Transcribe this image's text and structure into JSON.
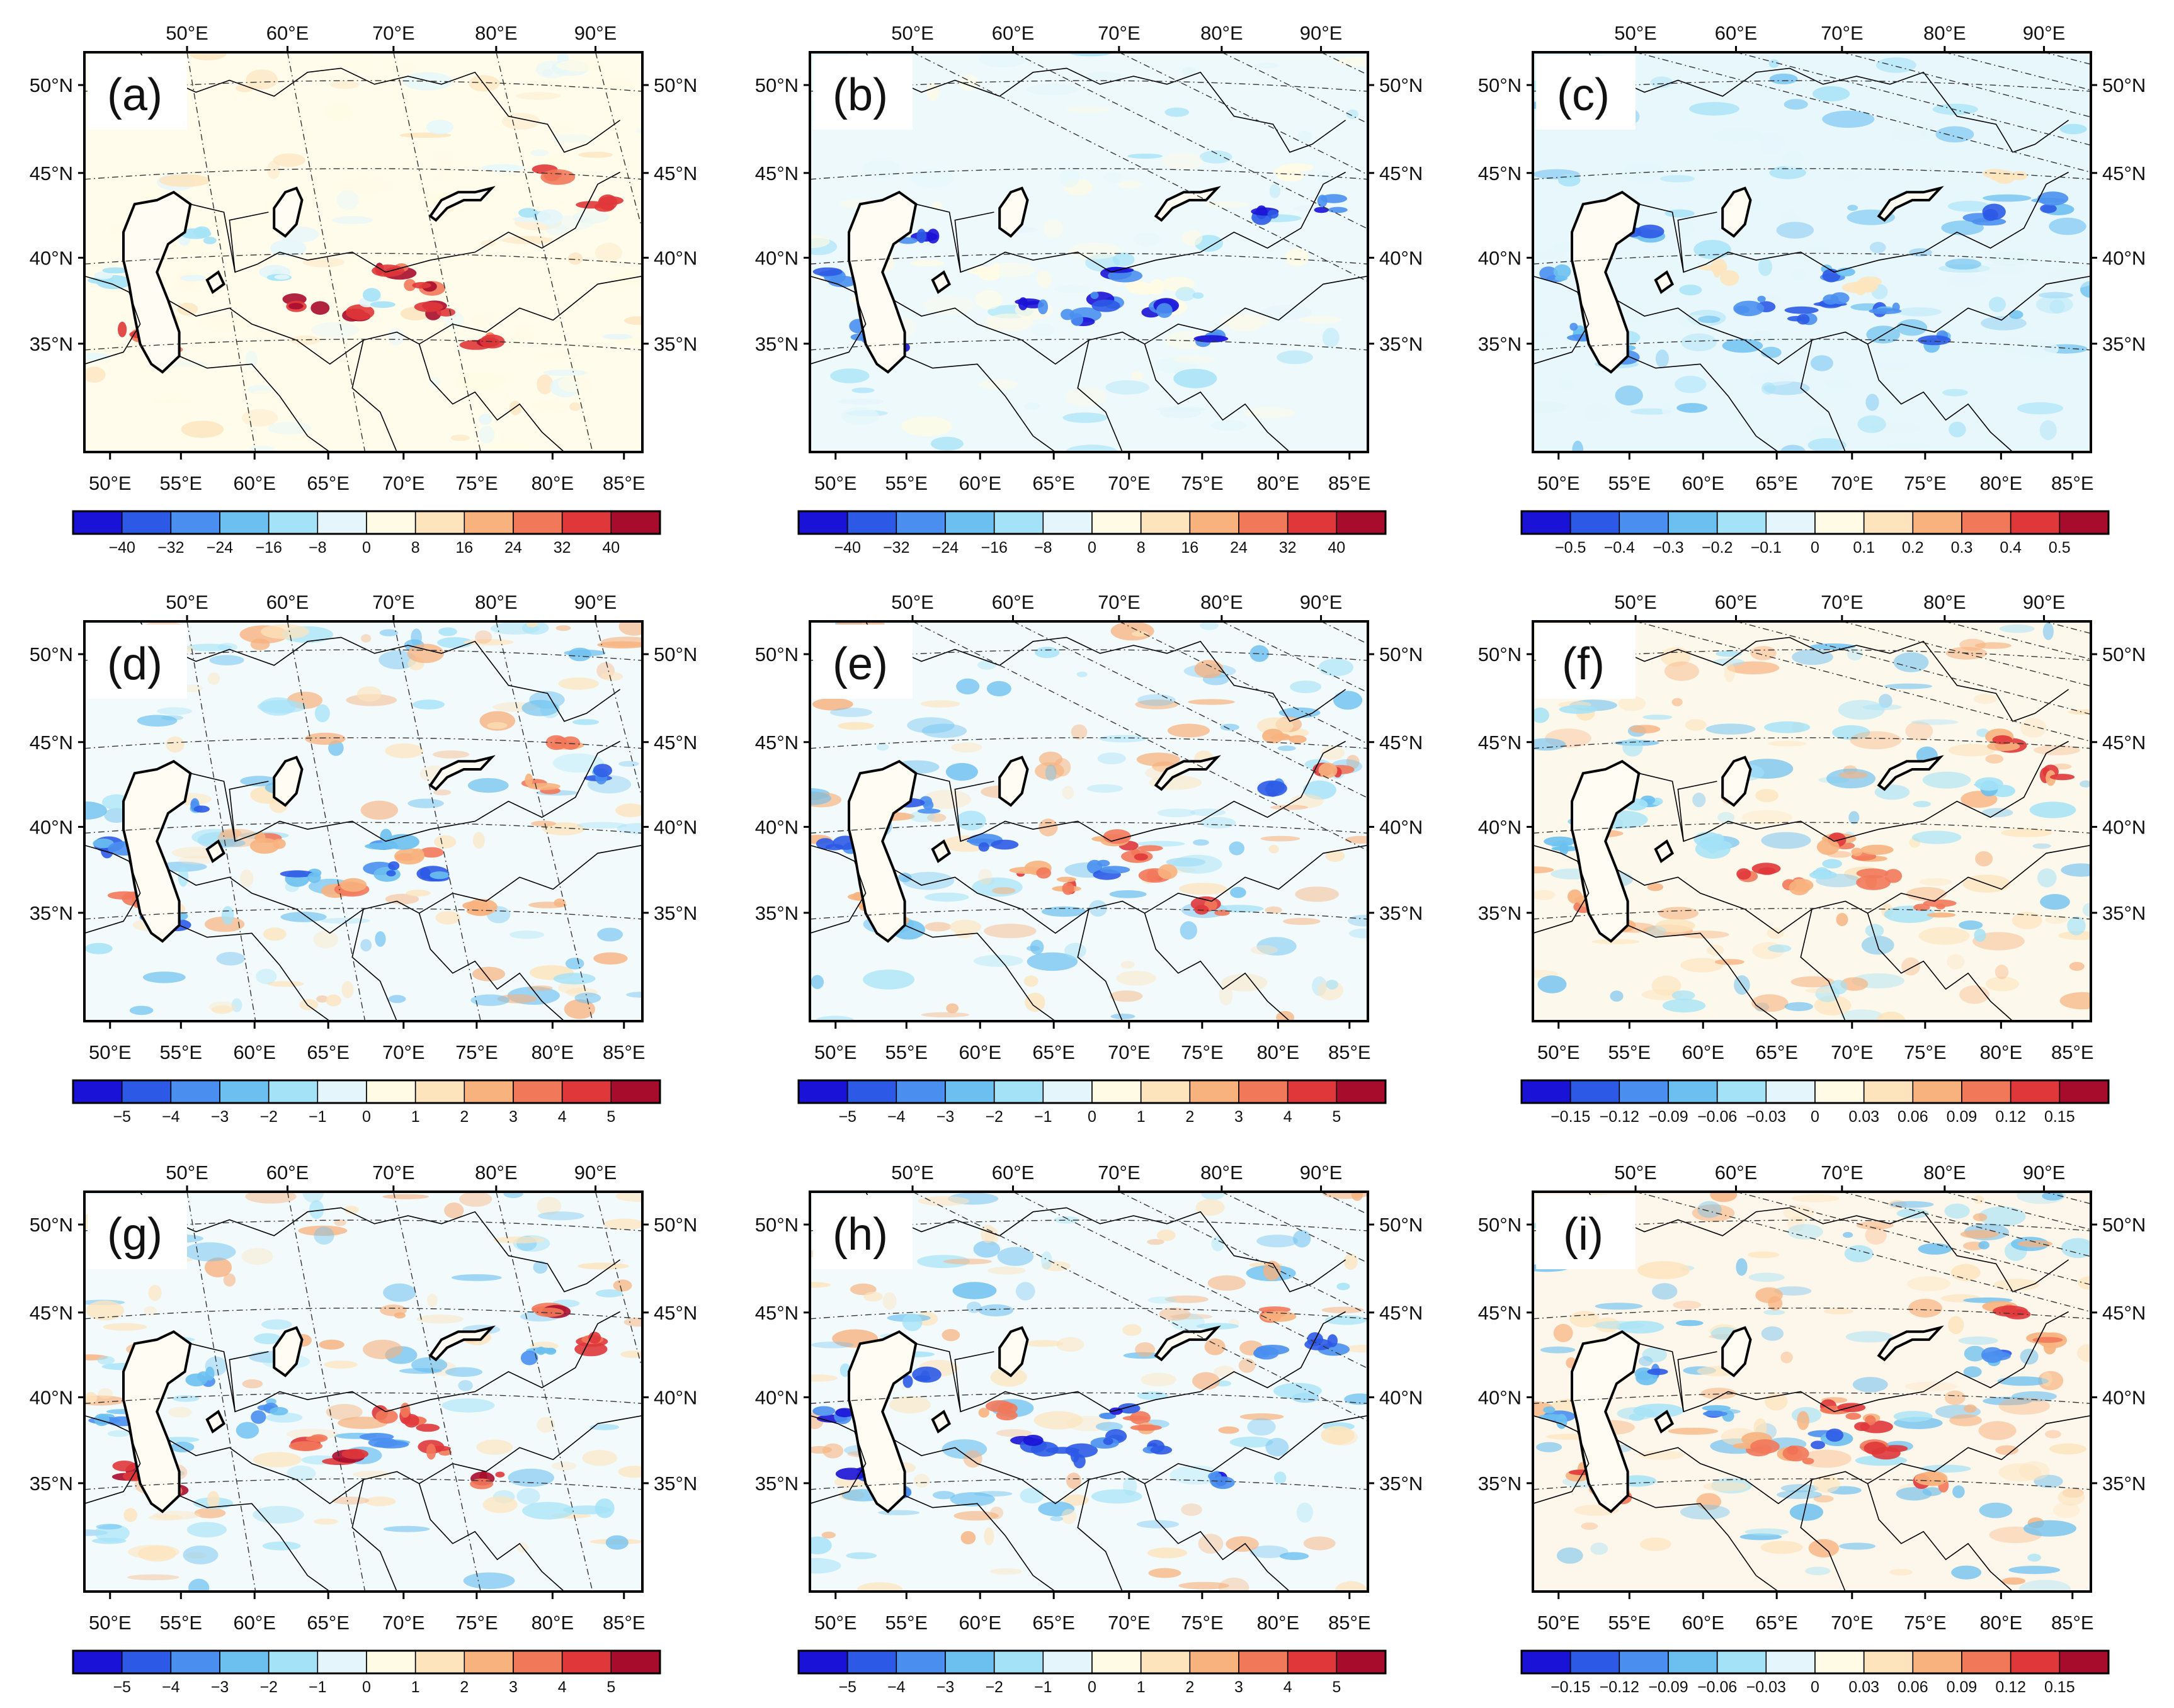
{
  "figure": {
    "top_lon_labels": [
      "50°E",
      "60°E",
      "70°E",
      "80°E",
      "90°E"
    ],
    "bottom_lon_labels": [
      "50°E",
      "55°E",
      "60°E",
      "65°E",
      "70°E",
      "75°E",
      "80°E",
      "85°E"
    ],
    "left_lat_labels": [
      "50°N",
      "45°N",
      "40°N",
      "35°N"
    ],
    "right_lat_labels": [
      "50°N",
      "45°N",
      "40°N",
      "35°N"
    ],
    "palette": [
      "#1a12d6",
      "#2c5ae6",
      "#4a8ff0",
      "#6cc0f0",
      "#a4e2f7",
      "#e4f6fb",
      "#fffbe4",
      "#fde4bd",
      "#f7b27e",
      "#f2785a",
      "#e0373a",
      "#a80c2c"
    ],
    "colorbars": {
      "anom40": [
        "−40",
        "−32",
        "−24",
        "−16",
        "−8",
        "0",
        "8",
        "16",
        "24",
        "32",
        "40"
      ],
      "anom05": [
        "−0.5",
        "−0.4",
        "−0.3",
        "−0.2",
        "−0.1",
        "0",
        "0.1",
        "0.2",
        "0.3",
        "0.4",
        "0.5"
      ],
      "anom5": [
        "−5",
        "−4",
        "−3",
        "−2",
        "−1",
        "0",
        "1",
        "2",
        "3",
        "4",
        "5"
      ],
      "anom015": [
        "−0.15",
        "−0.12",
        "−0.09",
        "−0.06",
        "−0.03",
        "0",
        "0.03",
        "0.06",
        "0.09",
        "0.12",
        "0.15"
      ]
    },
    "panels": [
      {
        "label": "(a)",
        "colorbar": "anom40"
      },
      {
        "label": "(b)",
        "colorbar": "anom40"
      },
      {
        "label": "(c)",
        "colorbar": "anom05"
      },
      {
        "label": "(d)",
        "colorbar": "anom5"
      },
      {
        "label": "(e)",
        "colorbar": "anom5"
      },
      {
        "label": "(f)",
        "colorbar": "anom015"
      },
      {
        "label": "(g)",
        "colorbar": "anom5"
      },
      {
        "label": "(h)",
        "colorbar": "anom5"
      },
      {
        "label": "(i)",
        "colorbar": "anom015"
      }
    ]
  }
}
